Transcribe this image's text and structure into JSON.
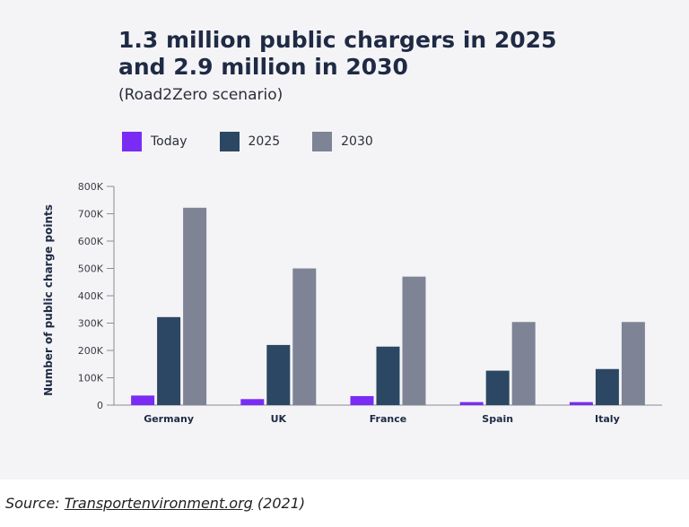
{
  "header": {
    "title_line1": "1.3 million public chargers in 2025",
    "title_line2": "and 2.9 million in 2030",
    "subtitle": "(Road2Zero scenario)"
  },
  "source": {
    "prefix": "Source: ",
    "link": "Transportenvironment.org",
    "suffix": " (2021)"
  },
  "chart_data": {
    "type": "bar",
    "title": "1.3 million public chargers in 2025 and 2.9 million in 2030",
    "subtitle": "(Road2Zero scenario)",
    "xlabel": "",
    "ylabel": "Number of public charge points",
    "ylim": [
      0,
      800000
    ],
    "yticks": [
      0,
      100000,
      200000,
      300000,
      400000,
      500000,
      600000,
      700000,
      800000
    ],
    "ytick_labels": [
      "0",
      "100K",
      "200K",
      "300K",
      "400K",
      "500K",
      "600K",
      "700K",
      "800K"
    ],
    "categories": [
      "Germany",
      "UK",
      "France",
      "Spain",
      "Italy"
    ],
    "series": [
      {
        "name": "Today",
        "color": "#7a2cf5",
        "values": [
          35000,
          22000,
          33000,
          11000,
          11000
        ]
      },
      {
        "name": "2025",
        "color": "#2c4763",
        "values": [
          322000,
          220000,
          214000,
          126000,
          132000
        ]
      },
      {
        "name": "2030",
        "color": "#7e8396",
        "values": [
          722000,
          500000,
          470000,
          304000,
          304000
        ]
      }
    ],
    "legend_position": "top-left",
    "grid": false
  }
}
